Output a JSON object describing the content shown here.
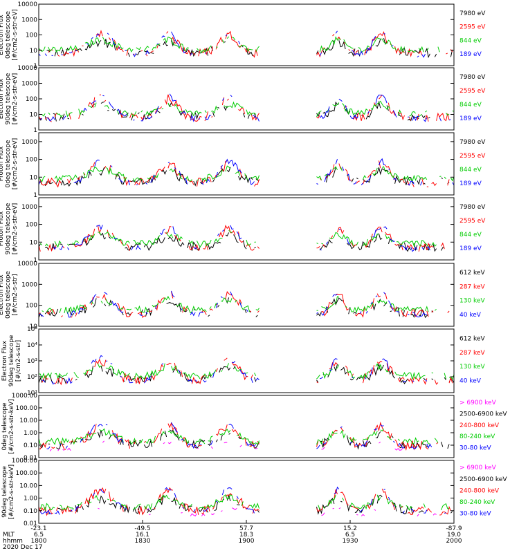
{
  "chart_data": {
    "type": "line",
    "date": "2020 Dec 17",
    "x_rows": [
      {
        "label": "",
        "values": [
          "-23.1",
          "-49.5",
          "57.7",
          "15.2",
          "-87.9"
        ]
      },
      {
        "label": "MLT",
        "values": [
          "6.5",
          "16.1",
          "18.3",
          "6.5",
          "19.0"
        ]
      },
      {
        "label": "hhmm",
        "values": [
          "1800",
          "1830",
          "1900",
          "1930",
          "2000"
        ]
      }
    ],
    "x_range": [
      1800,
      2000
    ],
    "panels": [
      {
        "ylabel": [
          "Electron Flux",
          "0deg telescope",
          "[#/cm2-s-str-eV]"
        ],
        "yticks": [
          "1",
          "10",
          "100",
          "1000",
          "10000"
        ],
        "ylog": [
          0,
          4
        ],
        "legend": [
          {
            "text": "7980 eV",
            "color": "#000000"
          },
          {
            "text": "2595 eV",
            "color": "#ff0000"
          },
          {
            "text": "844 eV",
            "color": "#00cc00"
          },
          {
            "text": "189 eV",
            "color": "#0000ff"
          }
        ]
      },
      {
        "ylabel": [
          "Electron Flux",
          "90deg telescope",
          "[#/cm2-s-str-eV]"
        ],
        "yticks": [
          "1",
          "10",
          "100",
          "1000",
          "10000"
        ],
        "ylog": [
          0,
          4
        ],
        "legend": [
          {
            "text": "7980 eV",
            "color": "#000000"
          },
          {
            "text": "2595 eV",
            "color": "#ff0000"
          },
          {
            "text": "844 eV",
            "color": "#00cc00"
          },
          {
            "text": "189 eV",
            "color": "#0000ff"
          }
        ]
      },
      {
        "ylabel": [
          "Proton Flux",
          "0deg telescope",
          "[#/cm2-s-str-eV]"
        ],
        "yticks": [
          "1",
          "10",
          "100",
          "1000"
        ],
        "ylog": [
          0,
          3.5
        ],
        "legend": [
          {
            "text": "7980 eV",
            "color": "#000000"
          },
          {
            "text": "2595 eV",
            "color": "#ff0000"
          },
          {
            "text": "844 eV",
            "color": "#00cc00"
          },
          {
            "text": "189 eV",
            "color": "#0000ff"
          }
        ]
      },
      {
        "ylabel": [
          "Proton Flux",
          "90deg telescope",
          "[#/cm2-s-str-eV]"
        ],
        "yticks": [
          "1",
          "10",
          "100",
          "1000"
        ],
        "ylog": [
          0,
          3.5
        ],
        "legend": [
          {
            "text": "7980 eV",
            "color": "#000000"
          },
          {
            "text": "2595 eV",
            "color": "#ff0000"
          },
          {
            "text": "844 eV",
            "color": "#00cc00"
          },
          {
            "text": "189 eV",
            "color": "#0000ff"
          }
        ]
      },
      {
        "ylabel": [
          "Electron Flux",
          "0deg telescope",
          "[#/cm2-s-str]"
        ],
        "yticks": [
          "10",
          "100",
          "1000",
          "10000"
        ],
        "ylog": [
          1,
          4
        ],
        "legend": [
          {
            "text": "612 keV",
            "color": "#000000"
          },
          {
            "text": "287 keV",
            "color": "#ff0000"
          },
          {
            "text": "130 keV",
            "color": "#00cc00"
          },
          {
            "text": "40 keV",
            "color": "#0000ff"
          }
        ]
      },
      {
        "ylabel": [
          "MEPED",
          "Electron Flux",
          "90deg telescope",
          "[#/cm2-s-str]"
        ],
        "yticks": [
          "10¹",
          "10²",
          "10³",
          "10⁴",
          "10⁵"
        ],
        "ylog": [
          1,
          5
        ],
        "legend": [
          {
            "text": "612 keV",
            "color": "#000000"
          },
          {
            "text": "287 keV",
            "color": "#ff0000"
          },
          {
            "text": "130 keV",
            "color": "#00cc00"
          },
          {
            "text": "40 keV",
            "color": "#0000ff"
          }
        ]
      },
      {
        "ylabel": [
          "0deg telescope",
          "[#/cm2-s-str-keV]"
        ],
        "yticks": [
          "0.01",
          "0.10",
          "1.00",
          "10.00",
          "100.00",
          "1000.00"
        ],
        "ylog": [
          -2,
          3
        ],
        "legend": [
          {
            "text": "> 6900 keV",
            "color": "#ff00ff"
          },
          {
            "text": "2500-6900 keV",
            "color": "#000000"
          },
          {
            "text": "240-800 keV",
            "color": "#ff0000"
          },
          {
            "text": "80-240 keV",
            "color": "#00cc00"
          },
          {
            "text": "30-80 keV",
            "color": "#0000ff"
          }
        ]
      },
      {
        "ylabel": [
          "90deg telescope",
          "[#/cm2-s-str-keV]"
        ],
        "yticks": [
          "0.01",
          "0.10",
          "1.00",
          "10.00",
          "100.00",
          "1000.00"
        ],
        "ylog": [
          -2,
          3
        ],
        "legend": [
          {
            "text": "> 6900 keV",
            "color": "#ff00ff"
          },
          {
            "text": "2500-6900 keV",
            "color": "#000000"
          },
          {
            "text": "240-800 keV",
            "color": "#ff0000"
          },
          {
            "text": "80-240 keV",
            "color": "#00cc00"
          },
          {
            "text": "30-80 keV",
            "color": "#0000ff"
          }
        ]
      }
    ]
  }
}
